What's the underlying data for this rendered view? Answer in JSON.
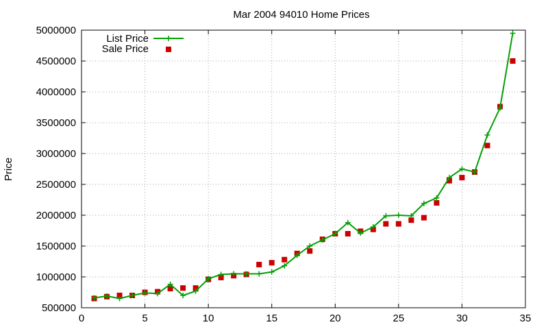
{
  "chart_data": {
    "type": "line",
    "title": "Mar 2004 94010 Home Prices",
    "xlabel": "",
    "ylabel": "Price",
    "xlim": [
      0,
      35
    ],
    "ylim": [
      500000,
      5000000
    ],
    "x_ticks": [
      0,
      5,
      10,
      15,
      20,
      25,
      30,
      35
    ],
    "y_ticks": [
      500000,
      1000000,
      1500000,
      2000000,
      2500000,
      3000000,
      3500000,
      4000000,
      4500000,
      5000000
    ],
    "x_tick_labels": [
      "0",
      "5",
      "10",
      "15",
      "20",
      "25",
      "30",
      "35"
    ],
    "y_tick_labels": [
      "500000",
      "1000000",
      "1500000",
      "2000000",
      "2500000",
      "3000000",
      "3500000",
      "4000000",
      "4500000",
      "5000000"
    ],
    "grid": true,
    "legend_position": "top-left",
    "x": [
      1,
      2,
      3,
      4,
      5,
      6,
      7,
      8,
      9,
      10,
      11,
      12,
      13,
      14,
      15,
      16,
      17,
      18,
      19,
      20,
      21,
      22,
      23,
      24,
      25,
      26,
      27,
      28,
      29,
      30,
      31,
      32,
      33,
      34
    ],
    "series": [
      {
        "name": "List Price",
        "style": "line-with-plus-markers",
        "color": "#00a000",
        "values": [
          660000,
          690000,
          650000,
          700000,
          740000,
          730000,
          880000,
          700000,
          770000,
          970000,
          1040000,
          1050000,
          1050000,
          1050000,
          1080000,
          1180000,
          1350000,
          1500000,
          1600000,
          1700000,
          1880000,
          1710000,
          1810000,
          1990000,
          2000000,
          1990000,
          2190000,
          2280000,
          2610000,
          2750000,
          2700000,
          3300000,
          3740000,
          4950000
        ]
      },
      {
        "name": "Sale Price",
        "style": "square-markers",
        "color": "#cc0000",
        "values": [
          650000,
          680000,
          700000,
          700000,
          750000,
          760000,
          810000,
          820000,
          820000,
          960000,
          990000,
          1020000,
          1040000,
          1200000,
          1230000,
          1280000,
          1380000,
          1420000,
          1610000,
          1700000,
          1700000,
          1740000,
          1770000,
          1860000,
          1860000,
          1920000,
          1960000,
          2200000,
          2560000,
          2610000,
          2700000,
          3130000,
          3760000,
          4500000
        ]
      }
    ]
  }
}
